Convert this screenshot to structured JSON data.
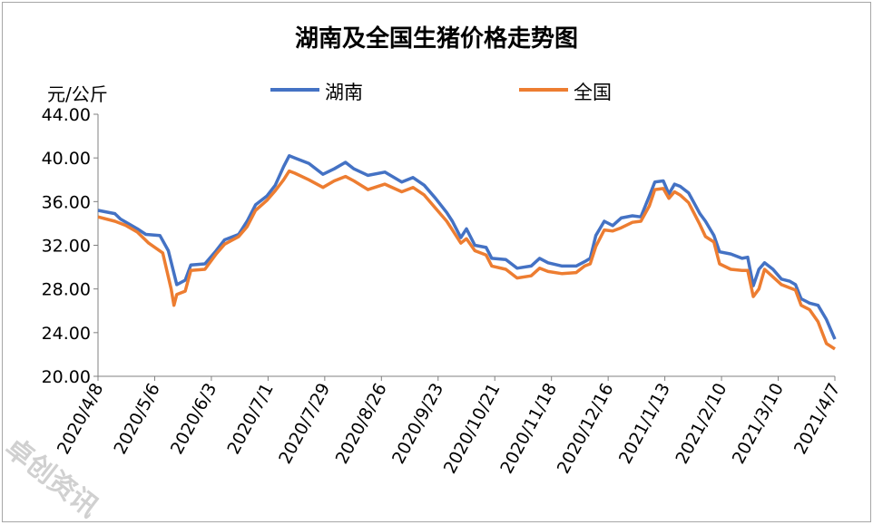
{
  "chart_data": {
    "type": "line",
    "title": "湖南及全国生猪价格走势图",
    "ylabel": "元/公斤",
    "xlabel": "",
    "ylim": [
      20,
      44
    ],
    "y_ticks": [
      "20.00",
      "24.00",
      "28.00",
      "32.00",
      "36.00",
      "40.00",
      "44.00"
    ],
    "x_ticks": [
      "2020/4/8",
      "2020/5/6",
      "2020/6/3",
      "2020/7/1",
      "2020/7/29",
      "2020/8/26",
      "2020/9/23",
      "2020/10/21",
      "2020/11/18",
      "2020/12/16",
      "2021/1/13",
      "2021/2/10",
      "2021/3/10",
      "2021/4/7"
    ],
    "grid": false,
    "legend": "top",
    "series": [
      {
        "name": "湖南",
        "color": "#4472C4",
        "values": [
          [
            0,
            35.2
          ],
          [
            6,
            34.9
          ],
          [
            8,
            34.4
          ],
          [
            14,
            33.5
          ],
          [
            17,
            33.0
          ],
          [
            22,
            32.9
          ],
          [
            25,
            31.5
          ],
          [
            28,
            28.4
          ],
          [
            31,
            28.8
          ],
          [
            33,
            30.2
          ],
          [
            38,
            30.3
          ],
          [
            42,
            31.5
          ],
          [
            45,
            32.5
          ],
          [
            50,
            33.0
          ],
          [
            53,
            34.2
          ],
          [
            56,
            35.7
          ],
          [
            60,
            36.5
          ],
          [
            63,
            37.5
          ],
          [
            66,
            39.2
          ],
          [
            68,
            40.2
          ],
          [
            70,
            40.0
          ],
          [
            75,
            39.5
          ],
          [
            80,
            38.5
          ],
          [
            84,
            39.0
          ],
          [
            88,
            39.6
          ],
          [
            91,
            39.0
          ],
          [
            96,
            38.4
          ],
          [
            102,
            38.7
          ],
          [
            108,
            37.8
          ],
          [
            112,
            38.2
          ],
          [
            116,
            37.5
          ],
          [
            120,
            36.3
          ],
          [
            124,
            35.0
          ],
          [
            126,
            34.2
          ],
          [
            129,
            32.7
          ],
          [
            131,
            33.5
          ],
          [
            134,
            32.0
          ],
          [
            138,
            31.8
          ],
          [
            140,
            30.8
          ],
          [
            145,
            30.7
          ],
          [
            149,
            29.9
          ],
          [
            154,
            30.1
          ],
          [
            157,
            30.8
          ],
          [
            160,
            30.4
          ],
          [
            165,
            30.1
          ],
          [
            170,
            30.1
          ],
          [
            173,
            30.5
          ],
          [
            175,
            30.8
          ],
          [
            177,
            32.9
          ],
          [
            180,
            34.2
          ],
          [
            183,
            33.8
          ],
          [
            186,
            34.5
          ],
          [
            190,
            34.7
          ],
          [
            193,
            34.6
          ],
          [
            196,
            36.5
          ],
          [
            198,
            37.8
          ],
          [
            201,
            37.9
          ],
          [
            203,
            36.7
          ],
          [
            205,
            37.6
          ],
          [
            207,
            37.4
          ],
          [
            210,
            36.8
          ],
          [
            214,
            34.9
          ],
          [
            216,
            34.2
          ],
          [
            219,
            32.9
          ],
          [
            221,
            31.4
          ],
          [
            225,
            31.2
          ],
          [
            229,
            30.8
          ],
          [
            231,
            30.9
          ],
          [
            233,
            28.3
          ],
          [
            235,
            29.8
          ],
          [
            237,
            30.4
          ],
          [
            240,
            29.8
          ],
          [
            243,
            28.9
          ],
          [
            246,
            28.7
          ],
          [
            248,
            28.4
          ],
          [
            250,
            27.1
          ],
          [
            253,
            26.7
          ],
          [
            256,
            26.5
          ],
          [
            259,
            25.2
          ],
          [
            262,
            23.4
          ]
        ]
      },
      {
        "name": "全国",
        "color": "#ED7D31",
        "values": [
          [
            0,
            34.6
          ],
          [
            6,
            34.2
          ],
          [
            10,
            33.8
          ],
          [
            14,
            33.2
          ],
          [
            18,
            32.2
          ],
          [
            23,
            31.3
          ],
          [
            26,
            28.0
          ],
          [
            27,
            26.5
          ],
          [
            28,
            27.5
          ],
          [
            31,
            27.8
          ],
          [
            33,
            29.7
          ],
          [
            38,
            29.8
          ],
          [
            42,
            31.2
          ],
          [
            45,
            32.1
          ],
          [
            50,
            32.8
          ],
          [
            53,
            33.7
          ],
          [
            56,
            35.2
          ],
          [
            60,
            36.1
          ],
          [
            63,
            37.0
          ],
          [
            66,
            38.0
          ],
          [
            68,
            38.8
          ],
          [
            70,
            38.6
          ],
          [
            75,
            38.0
          ],
          [
            80,
            37.3
          ],
          [
            84,
            37.9
          ],
          [
            88,
            38.3
          ],
          [
            91,
            37.9
          ],
          [
            96,
            37.1
          ],
          [
            102,
            37.6
          ],
          [
            108,
            36.9
          ],
          [
            112,
            37.3
          ],
          [
            116,
            36.6
          ],
          [
            120,
            35.4
          ],
          [
            124,
            34.2
          ],
          [
            126,
            33.4
          ],
          [
            129,
            32.2
          ],
          [
            131,
            32.6
          ],
          [
            134,
            31.5
          ],
          [
            138,
            31.1
          ],
          [
            140,
            30.1
          ],
          [
            145,
            29.8
          ],
          [
            149,
            29.0
          ],
          [
            154,
            29.2
          ],
          [
            157,
            29.9
          ],
          [
            160,
            29.6
          ],
          [
            165,
            29.4
          ],
          [
            170,
            29.5
          ],
          [
            173,
            30.1
          ],
          [
            175,
            30.3
          ],
          [
            177,
            31.9
          ],
          [
            180,
            33.4
          ],
          [
            183,
            33.3
          ],
          [
            186,
            33.6
          ],
          [
            190,
            34.1
          ],
          [
            193,
            34.2
          ],
          [
            196,
            35.6
          ],
          [
            198,
            37.1
          ],
          [
            201,
            37.2
          ],
          [
            203,
            36.3
          ],
          [
            205,
            36.9
          ],
          [
            207,
            36.6
          ],
          [
            210,
            35.9
          ],
          [
            214,
            33.9
          ],
          [
            216,
            32.8
          ],
          [
            219,
            32.3
          ],
          [
            221,
            30.3
          ],
          [
            225,
            29.8
          ],
          [
            229,
            29.7
          ],
          [
            231,
            29.7
          ],
          [
            233,
            27.3
          ],
          [
            235,
            28.0
          ],
          [
            237,
            29.8
          ],
          [
            240,
            29.1
          ],
          [
            243,
            28.4
          ],
          [
            246,
            28.1
          ],
          [
            248,
            27.9
          ],
          [
            250,
            26.5
          ],
          [
            253,
            26.1
          ],
          [
            256,
            25.0
          ],
          [
            259,
            23.0
          ],
          [
            262,
            22.5
          ]
        ]
      }
    ]
  }
}
